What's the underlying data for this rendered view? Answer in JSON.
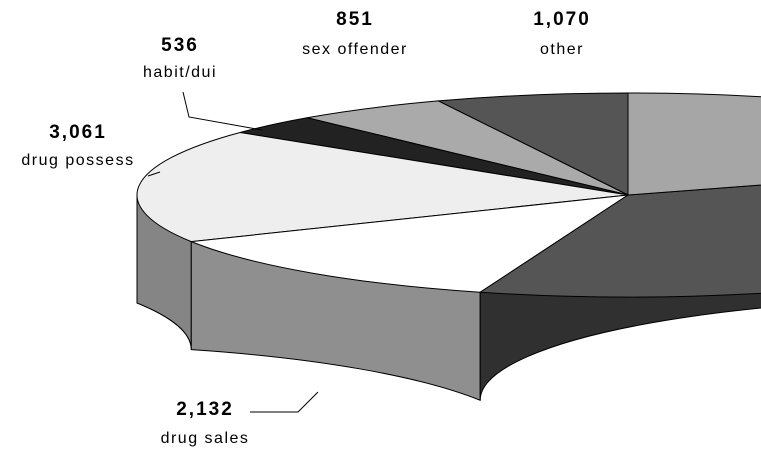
{
  "chart_data": {
    "type": "pie3d",
    "categories": [
      "other",
      "sex offender",
      "habit/dui",
      "drug possess",
      "drug sales",
      null,
      null
    ],
    "values": [
      1070,
      851,
      536,
      3061,
      2132,
      6000,
      3300
    ],
    "value_labels": [
      "1,070",
      "851",
      "536",
      "3,061",
      "2,132",
      null,
      null
    ],
    "colors": [
      "#555555",
      "#aaaaaa",
      "#222222",
      "#eeeeee",
      "#ffffff",
      "#555555",
      "#a6a6a6"
    ]
  }
}
